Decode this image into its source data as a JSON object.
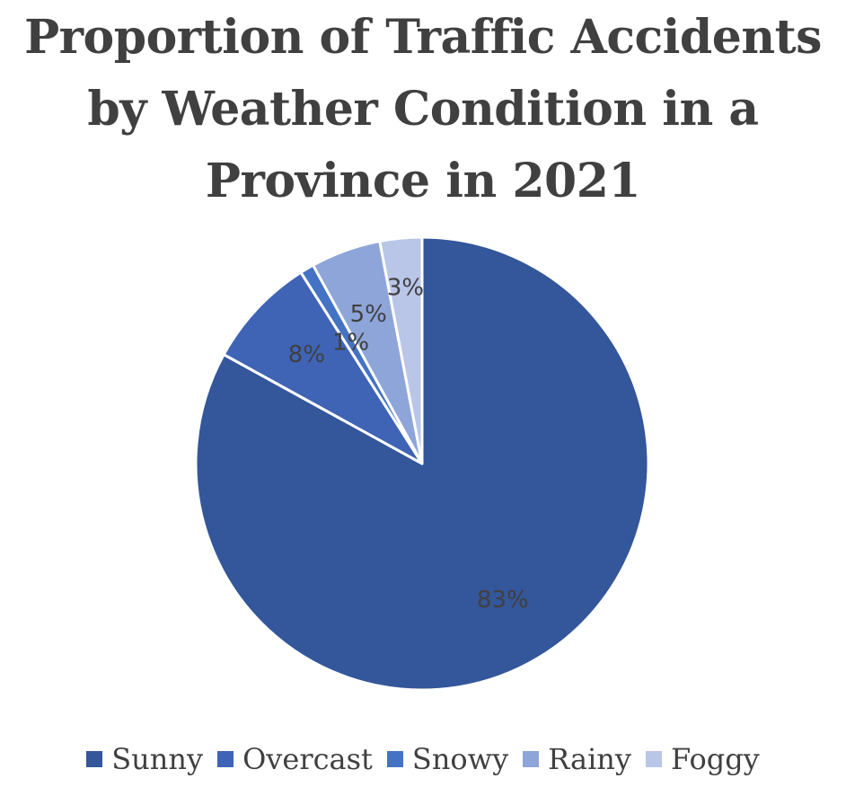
{
  "chart_data": {
    "type": "pie",
    "title": "Proportion of Traffic Accidents by Weather Condition in a Province in 2021",
    "categories": [
      "Sunny",
      "Overcast",
      "Snowy",
      "Rainy",
      "Foggy"
    ],
    "values": [
      83,
      8,
      1,
      5,
      3
    ],
    "value_labels": [
      "83%",
      "8%",
      "1%",
      "5%",
      "3%"
    ],
    "colors": [
      "#34569A",
      "#3F64B5",
      "#4472C4",
      "#8EA5D9",
      "#BAC6E8"
    ],
    "legend_position": "bottom",
    "start_angle": "12 o'clock",
    "direction": "clockwise"
  }
}
